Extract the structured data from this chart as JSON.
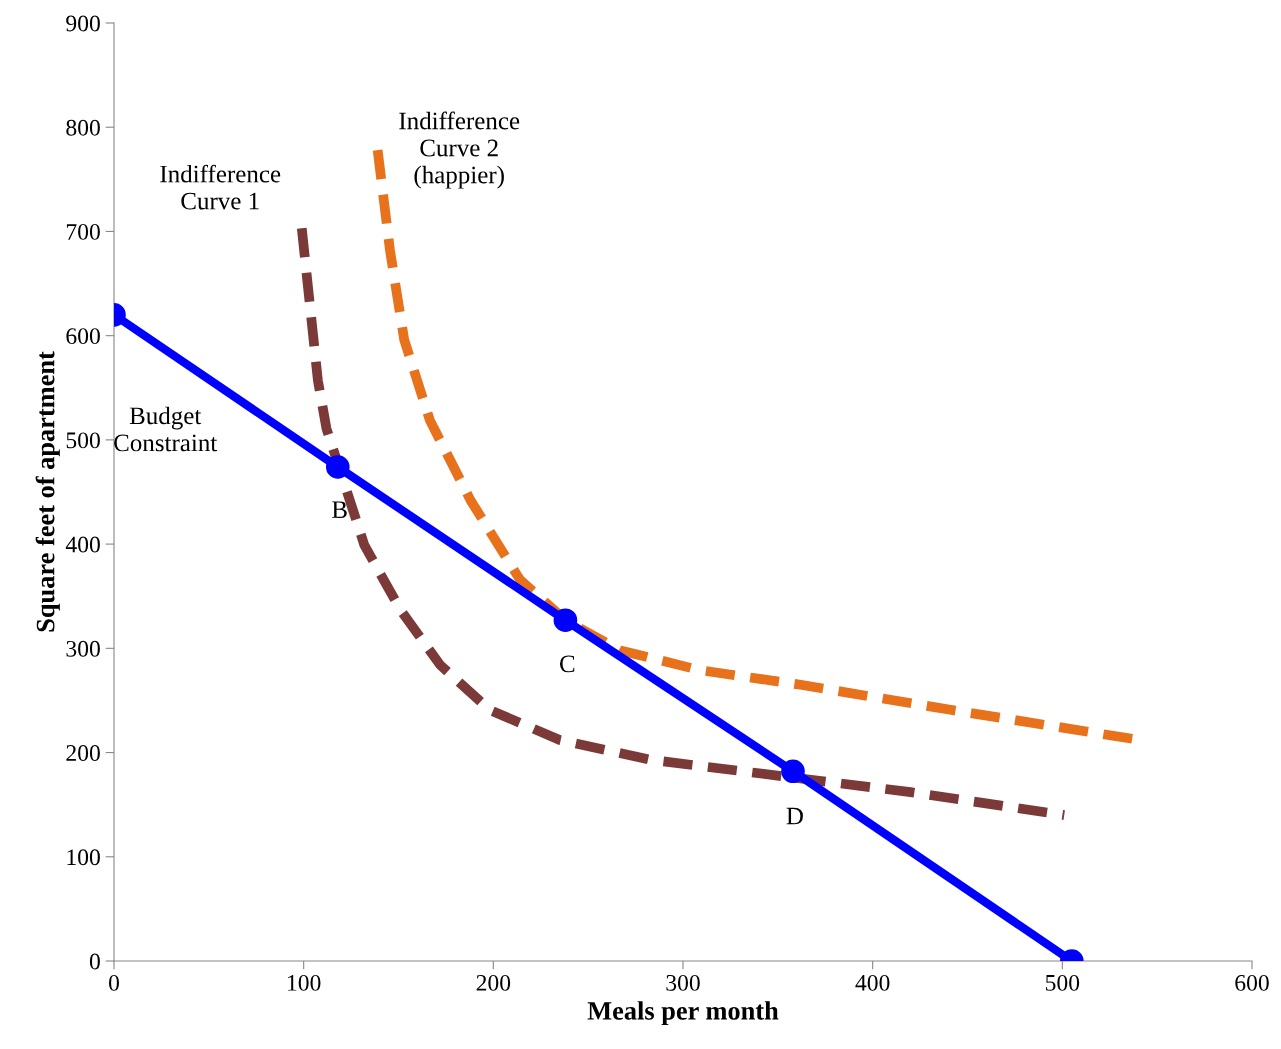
{
  "chart_data": {
    "type": "line",
    "xlabel": "Meals per month",
    "ylabel": "Square feet of apartment",
    "xlim": [
      0,
      600
    ],
    "ylim": [
      0,
      900
    ],
    "xticks": [
      0,
      100,
      200,
      300,
      400,
      500,
      600
    ],
    "yticks": [
      0,
      100,
      200,
      300,
      400,
      500,
      600,
      700,
      800,
      900
    ],
    "grid": false,
    "legend": false,
    "series": [
      {
        "color": "#7b3a37",
        "line_style": "dashed",
        "marker": "none",
        "x": [
          99,
          107.5,
          112,
          132,
          151,
          172,
          198,
          235,
          283,
          420,
          501
        ],
        "values": [
          703,
          557,
          511,
          399,
          337,
          284,
          241,
          212,
          193,
          162,
          140
        ]
      },
      {
        "color": "#e8711c",
        "line_style": "dashed",
        "marker": "none",
        "x": [
          139,
          145.5,
          153,
          166.5,
          188,
          214,
          238,
          267,
          309,
          362,
          441,
          541
        ],
        "values": [
          778,
          682,
          596,
          519,
          442,
          366,
          327,
          298,
          279,
          265,
          241,
          212
        ]
      },
      {
        "color": "#0000ff",
        "line_style": "solid",
        "marker": "circle",
        "x": [
          0,
          118,
          238,
          358,
          505
        ],
        "values": [
          620,
          474,
          327,
          182,
          0
        ]
      }
    ],
    "annotations": [
      "Indifference\nCurve 1",
      "Indifference\nCurve 2\n(happier)",
      "Budget\nConstraint",
      "B",
      "C",
      "D"
    ]
  }
}
